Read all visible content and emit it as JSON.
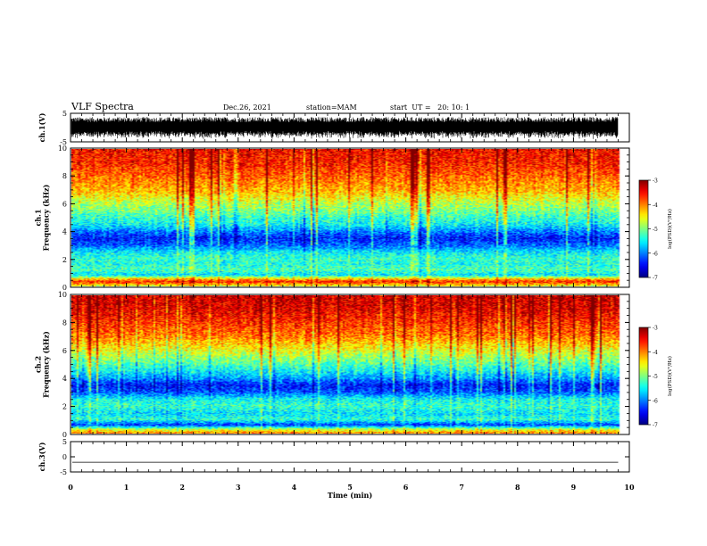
{
  "header": {
    "title": "VLF Spectra",
    "date": "Dec.26, 2021",
    "station": "station=MAM",
    "start": "start  UT =   20: 10: 1"
  },
  "chart_data": [
    {
      "type": "line",
      "name": "ch1-waveform",
      "ylabel": "ch.1(V)",
      "ylim": [
        -5,
        5
      ],
      "yticks": [
        "5",
        "-5"
      ],
      "xlim": [
        0,
        10
      ],
      "data_end_min": 9.8,
      "description_values": {
        "typical_amplitude_range": [
          -3.5,
          3.5
        ]
      }
    },
    {
      "type": "heatmap",
      "name": "ch1-spectrogram",
      "ylabel": "ch.1\nFrequency (kHz)",
      "ylim": [
        0,
        10
      ],
      "yticks": [
        "0",
        "2",
        "4",
        "6",
        "8",
        "10"
      ],
      "xlim": [
        0,
        10
      ],
      "data_end_min": 9.8,
      "band_profile_khz": [
        [
          0,
          -4.6
        ],
        [
          0.3,
          -3.6
        ],
        [
          0.5,
          -4.2
        ],
        [
          0.8,
          -5.6
        ],
        [
          1.2,
          -5.2
        ],
        [
          1.6,
          -5.4
        ],
        [
          2.0,
          -5.3
        ],
        [
          2.4,
          -5.5
        ],
        [
          3.0,
          -6.1
        ],
        [
          3.5,
          -6.4
        ],
        [
          4.0,
          -6.0
        ],
        [
          4.5,
          -5.5
        ],
        [
          5.0,
          -5.3
        ],
        [
          5.5,
          -5.0
        ],
        [
          6.0,
          -4.8
        ],
        [
          6.5,
          -4.5
        ],
        [
          7.0,
          -4.2
        ],
        [
          8.0,
          -3.9
        ],
        [
          9.0,
          -3.6
        ],
        [
          10.0,
          -3.5
        ]
      ],
      "colorbar": {
        "label": "log(PSD)(V²/Hz)",
        "ticks": [
          "-3",
          "-4",
          "-5",
          "-6",
          "-7"
        ],
        "range": [
          -7,
          -3
        ]
      }
    },
    {
      "type": "heatmap",
      "name": "ch2-spectrogram",
      "ylabel": "ch.2\nFrequency (kHz)",
      "ylim": [
        0,
        10
      ],
      "yticks": [
        "0",
        "2",
        "4",
        "6",
        "8",
        "10"
      ],
      "xlim": [
        0,
        10
      ],
      "data_end_min": 9.8,
      "band_profile_khz": [
        [
          0,
          -4.0
        ],
        [
          0.3,
          -4.8
        ],
        [
          0.6,
          -6.3
        ],
        [
          1.0,
          -5.3
        ],
        [
          1.4,
          -5.6
        ],
        [
          2.0,
          -5.3
        ],
        [
          2.5,
          -5.5
        ],
        [
          3.0,
          -6.2
        ],
        [
          3.5,
          -6.4
        ],
        [
          4.0,
          -5.9
        ],
        [
          4.5,
          -5.5
        ],
        [
          5.0,
          -5.2
        ],
        [
          5.5,
          -4.9
        ],
        [
          6.0,
          -4.6
        ],
        [
          6.5,
          -4.3
        ],
        [
          7.0,
          -4.0
        ],
        [
          8.0,
          -3.7
        ],
        [
          9.0,
          -3.4
        ],
        [
          10.0,
          -3.3
        ]
      ],
      "colorbar": {
        "label": "log(PSD)(V²/Hz)",
        "ticks": [
          "-3",
          "-4",
          "-5",
          "-6",
          "-7"
        ],
        "range": [
          -7,
          -3
        ]
      }
    },
    {
      "type": "line",
      "name": "ch3-waveform",
      "ylabel": "ch.3(V)",
      "ylim": [
        -5,
        5
      ],
      "yticks": [
        "5",
        "0",
        "-5"
      ],
      "xlim": [
        0,
        10
      ],
      "values_constant": -1.8,
      "xlabel": "Time (min)",
      "xticks": [
        "0",
        "1",
        "2",
        "3",
        "4",
        "5",
        "6",
        "7",
        "8",
        "9",
        "10"
      ]
    }
  ],
  "colors": {
    "colormap": [
      "#000080",
      "#0000ff",
      "#0080ff",
      "#00ffff",
      "#00ff40",
      "#ffff00",
      "#ff8000",
      "#ff0000",
      "#ffffff"
    ]
  }
}
